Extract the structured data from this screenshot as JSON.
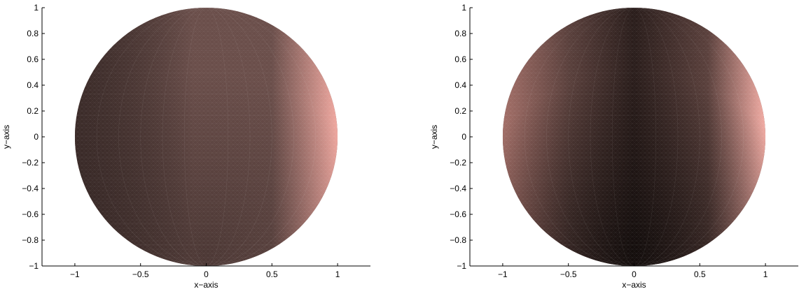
{
  "chart_data": [
    {
      "type": "surface",
      "title": "",
      "xlabel": "x−axis",
      "ylabel": "y−axis",
      "xlim": [
        -1.25,
        1.25
      ],
      "ylim": [
        -1,
        1
      ],
      "xticks": [
        -1,
        -0.5,
        0,
        0.5,
        1
      ],
      "xtick_labels": [
        "−1",
        "−0.5",
        "0",
        "0.5",
        "1"
      ],
      "yticks": [
        -1,
        -0.8,
        -0.6,
        -0.4,
        -0.2,
        0,
        0.2,
        0.4,
        0.6,
        0.8,
        1
      ],
      "ytick_labels": [
        "−1",
        "−0.8",
        "−0.6",
        "−0.4",
        "−0.2",
        "0",
        "0.2",
        "0.4",
        "0.6",
        "0.8",
        "1"
      ],
      "grid": false,
      "shape": "sphere",
      "center": [
        0,
        0
      ],
      "radius": 1,
      "colors": {
        "highlight": "#f0a8a0",
        "mid": "#6a4e4a",
        "shadow": "#140e0d"
      },
      "highlight_direction": "right"
    },
    {
      "type": "surface",
      "title": "",
      "xlabel": "x−axis",
      "ylabel": "y−axis",
      "xlim": [
        -1.25,
        1.25
      ],
      "ylim": [
        -1,
        1
      ],
      "xticks": [
        -1,
        -0.5,
        0,
        0.5,
        1
      ],
      "xtick_labels": [
        "−1",
        "−0.5",
        "0",
        "0.5",
        "1"
      ],
      "yticks": [
        -1,
        -0.8,
        -0.6,
        -0.4,
        -0.2,
        0,
        0.2,
        0.4,
        0.6,
        0.8,
        1
      ],
      "ytick_labels": [
        "−1",
        "−0.8",
        "−0.6",
        "−0.4",
        "−0.2",
        "0",
        "0.2",
        "0.4",
        "0.6",
        "0.8",
        "1"
      ],
      "grid": false,
      "shape": "sphere",
      "center": [
        0,
        0
      ],
      "radius": 1,
      "colors": {
        "highlight": "#f2aca4",
        "mid": "#5a403c",
        "shadow": "#0c0807"
      },
      "highlight_direction": "right and left, dark bottom"
    }
  ]
}
